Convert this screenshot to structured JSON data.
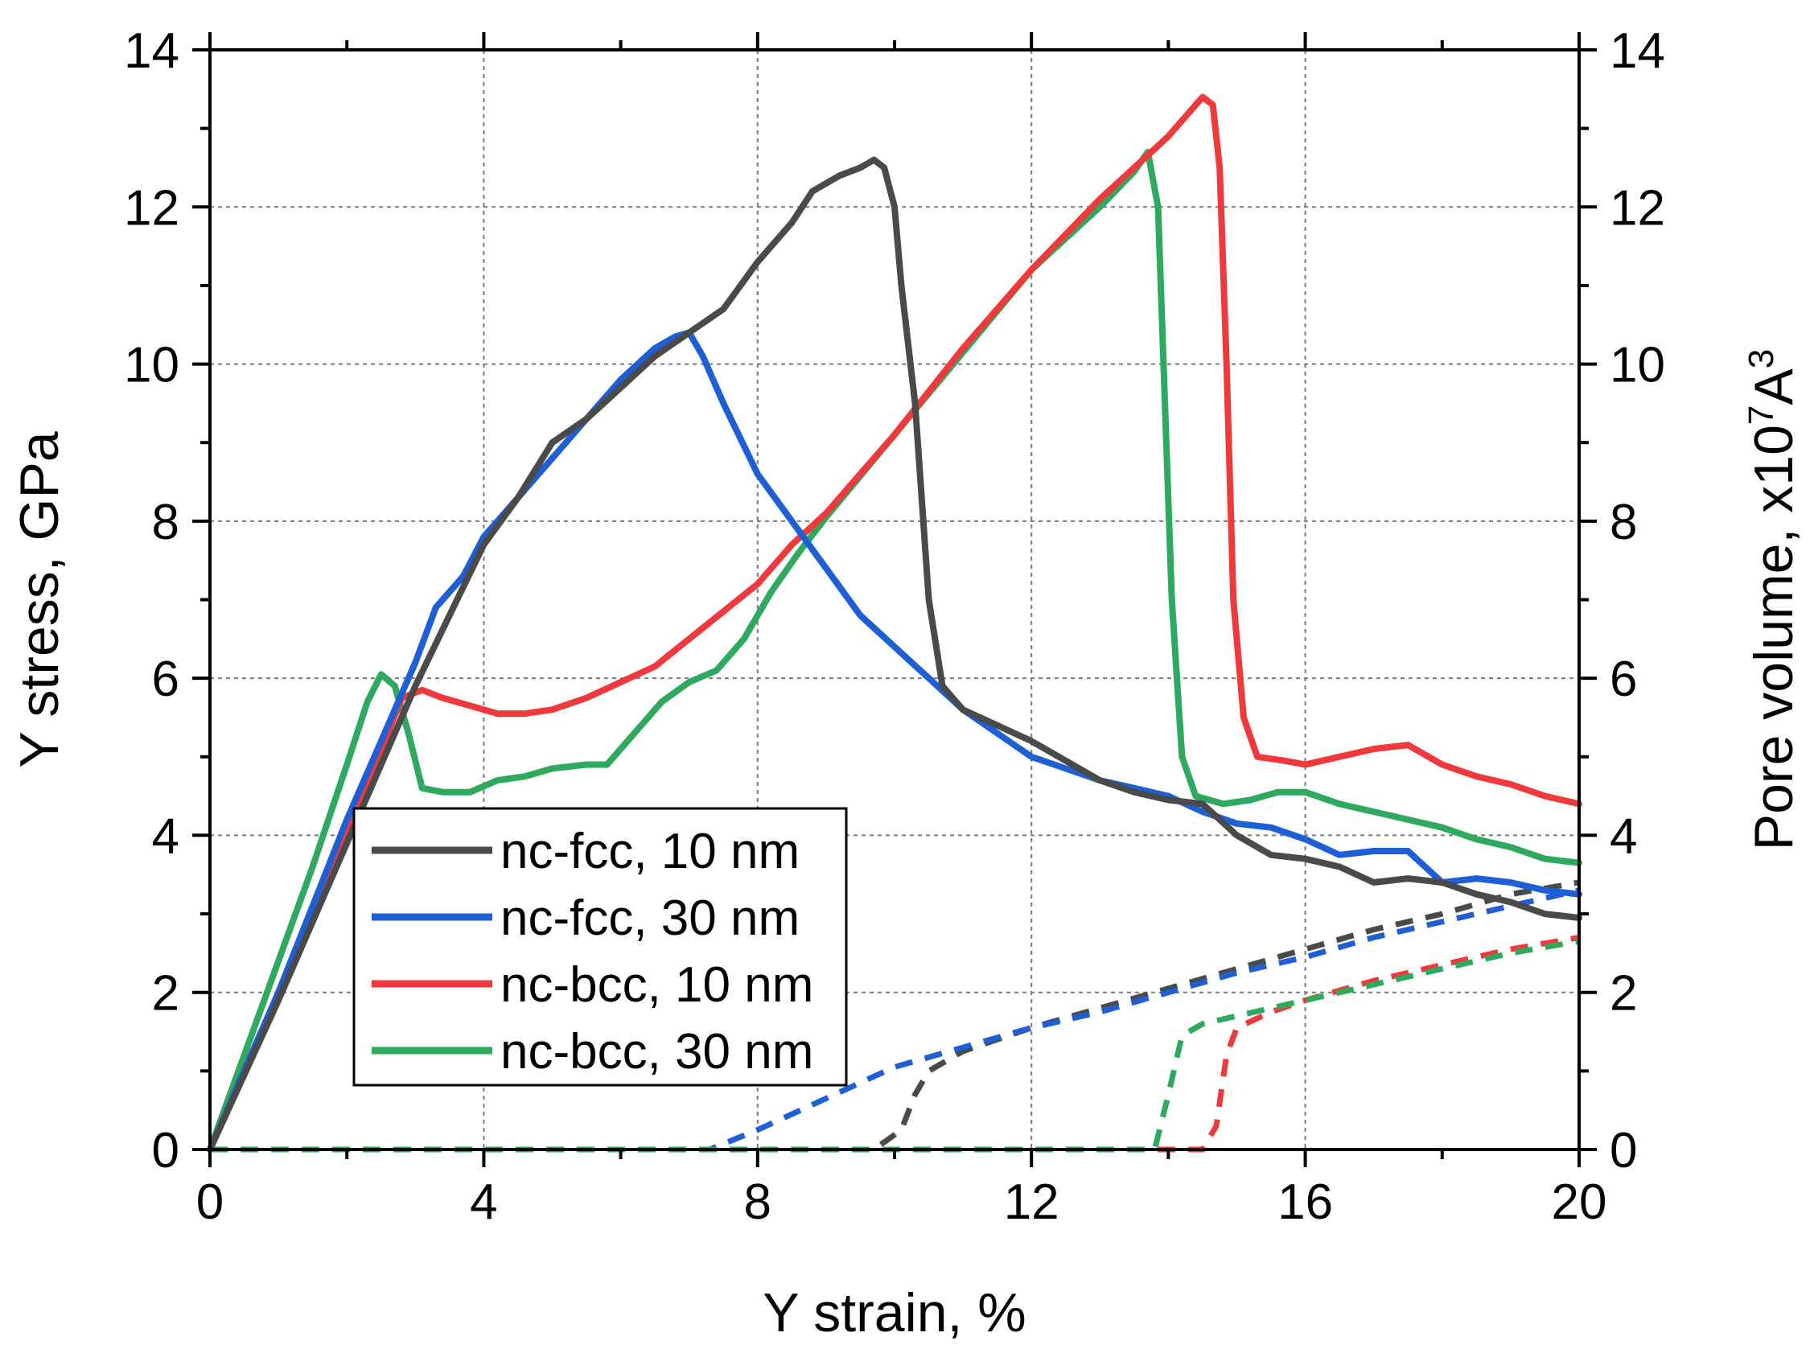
{
  "chart_data": {
    "type": "line",
    "title": "",
    "xlabel": "Y strain, %",
    "ylabel": "Y stress, GPa",
    "y2label_main": "Pore volume, x10",
    "y2label_exp": "7",
    "y2label_unit": "A",
    "y2label_unit_exp": "3",
    "xlim": [
      0,
      20
    ],
    "ylim": [
      0,
      14
    ],
    "y2lim": [
      0,
      14
    ],
    "xticks": [
      0,
      4,
      8,
      12,
      16,
      20
    ],
    "yticks": [
      0,
      2,
      4,
      6,
      8,
      10,
      12,
      14
    ],
    "y2ticks": [
      0,
      2,
      4,
      6,
      8,
      10,
      12,
      14
    ],
    "grid": true,
    "legend_position": "lower-left",
    "series": [
      {
        "name": "nc-fcc, 10 nm",
        "color": "#4a4a4a",
        "points": [
          [
            0,
            0
          ],
          [
            1,
            1.9
          ],
          [
            2,
            3.9
          ],
          [
            3,
            5.9
          ],
          [
            3.5,
            6.8
          ],
          [
            4,
            7.7
          ],
          [
            4.5,
            8.3
          ],
          [
            5,
            9.0
          ],
          [
            5.5,
            9.3
          ],
          [
            6,
            9.7
          ],
          [
            6.5,
            10.1
          ],
          [
            7,
            10.4
          ],
          [
            7.5,
            10.7
          ],
          [
            8,
            11.3
          ],
          [
            8.5,
            11.8
          ],
          [
            8.8,
            12.2
          ],
          [
            9.2,
            12.4
          ],
          [
            9.5,
            12.5
          ],
          [
            9.7,
            12.6
          ],
          [
            9.85,
            12.5
          ],
          [
            10,
            12.0
          ],
          [
            10.1,
            11.0
          ],
          [
            10.3,
            9.5
          ],
          [
            10.5,
            7.0
          ],
          [
            10.7,
            5.9
          ],
          [
            11,
            5.6
          ],
          [
            11.5,
            5.4
          ],
          [
            12,
            5.2
          ],
          [
            12.5,
            4.95
          ],
          [
            13,
            4.7
          ],
          [
            13.5,
            4.55
          ],
          [
            14,
            4.45
          ],
          [
            14.5,
            4.4
          ],
          [
            15,
            4.0
          ],
          [
            15.5,
            3.75
          ],
          [
            16,
            3.7
          ],
          [
            16.5,
            3.6
          ],
          [
            17,
            3.4
          ],
          [
            17.5,
            3.45
          ],
          [
            18,
            3.4
          ],
          [
            18.5,
            3.25
          ],
          [
            19,
            3.15
          ],
          [
            19.5,
            3.0
          ],
          [
            20,
            2.95
          ]
        ]
      },
      {
        "name": "nc-fcc, 30 nm",
        "color": "#1f5fd6",
        "points": [
          [
            0,
            0
          ],
          [
            1,
            2.0
          ],
          [
            2,
            4.2
          ],
          [
            2.5,
            5.2
          ],
          [
            3,
            6.2
          ],
          [
            3.3,
            6.9
          ],
          [
            3.7,
            7.3
          ],
          [
            4,
            7.8
          ],
          [
            4.5,
            8.3
          ],
          [
            5,
            8.8
          ],
          [
            5.5,
            9.3
          ],
          [
            6,
            9.8
          ],
          [
            6.5,
            10.2
          ],
          [
            6.8,
            10.35
          ],
          [
            7,
            10.4
          ],
          [
            7.2,
            10.1
          ],
          [
            7.5,
            9.5
          ],
          [
            8,
            8.6
          ],
          [
            8.5,
            8.0
          ],
          [
            9,
            7.4
          ],
          [
            9.5,
            6.8
          ],
          [
            10,
            6.4
          ],
          [
            10.5,
            6.0
          ],
          [
            11,
            5.6
          ],
          [
            11.5,
            5.3
          ],
          [
            12,
            5.0
          ],
          [
            12.5,
            4.85
          ],
          [
            13,
            4.7
          ],
          [
            13.5,
            4.6
          ],
          [
            14,
            4.5
          ],
          [
            14.5,
            4.3
          ],
          [
            15,
            4.15
          ],
          [
            15.5,
            4.1
          ],
          [
            16,
            3.95
          ],
          [
            16.5,
            3.75
          ],
          [
            17,
            3.8
          ],
          [
            17.5,
            3.8
          ],
          [
            18,
            3.4
          ],
          [
            18.5,
            3.45
          ],
          [
            19,
            3.4
          ],
          [
            19.5,
            3.3
          ],
          [
            20,
            3.25
          ]
        ]
      },
      {
        "name": "nc-bcc, 10 nm",
        "color": "#f0393c",
        "points": [
          [
            0,
            0
          ],
          [
            1,
            2.0
          ],
          [
            2,
            4.0
          ],
          [
            2.6,
            5.3
          ],
          [
            2.8,
            5.75
          ],
          [
            3.1,
            5.85
          ],
          [
            3.4,
            5.75
          ],
          [
            3.8,
            5.65
          ],
          [
            4.2,
            5.55
          ],
          [
            4.6,
            5.55
          ],
          [
            5,
            5.6
          ],
          [
            5.5,
            5.75
          ],
          [
            6,
            5.95
          ],
          [
            6.5,
            6.15
          ],
          [
            7,
            6.5
          ],
          [
            7.5,
            6.85
          ],
          [
            8,
            7.2
          ],
          [
            8.5,
            7.7
          ],
          [
            9,
            8.1
          ],
          [
            9.5,
            8.6
          ],
          [
            10,
            9.1
          ],
          [
            11,
            10.2
          ],
          [
            12,
            11.2
          ],
          [
            13,
            12.1
          ],
          [
            13.5,
            12.5
          ],
          [
            14,
            12.9
          ],
          [
            14.3,
            13.2
          ],
          [
            14.5,
            13.4
          ],
          [
            14.65,
            13.3
          ],
          [
            14.75,
            12.5
          ],
          [
            14.85,
            10.0
          ],
          [
            14.95,
            7.0
          ],
          [
            15.1,
            5.5
          ],
          [
            15.3,
            5.0
          ],
          [
            15.7,
            4.95
          ],
          [
            16,
            4.9
          ],
          [
            16.5,
            5.0
          ],
          [
            17,
            5.1
          ],
          [
            17.5,
            5.15
          ],
          [
            18,
            4.9
          ],
          [
            18.5,
            4.75
          ],
          [
            19,
            4.65
          ],
          [
            19.5,
            4.5
          ],
          [
            20,
            4.4
          ]
        ]
      },
      {
        "name": "nc-bcc, 30 nm",
        "color": "#2eaa5e",
        "points": [
          [
            0,
            0
          ],
          [
            0.5,
            1.2
          ],
          [
            1,
            2.4
          ],
          [
            1.5,
            3.6
          ],
          [
            2,
            4.9
          ],
          [
            2.3,
            5.7
          ],
          [
            2.5,
            6.05
          ],
          [
            2.7,
            5.9
          ],
          [
            2.9,
            5.3
          ],
          [
            3.1,
            4.6
          ],
          [
            3.4,
            4.55
          ],
          [
            3.8,
            4.55
          ],
          [
            4.2,
            4.7
          ],
          [
            4.6,
            4.75
          ],
          [
            5,
            4.85
          ],
          [
            5.5,
            4.9
          ],
          [
            5.8,
            4.9
          ],
          [
            6.2,
            5.3
          ],
          [
            6.6,
            5.7
          ],
          [
            7,
            5.95
          ],
          [
            7.4,
            6.1
          ],
          [
            7.8,
            6.5
          ],
          [
            8.2,
            7.1
          ],
          [
            8.6,
            7.6
          ],
          [
            9,
            8.05
          ],
          [
            10,
            9.1
          ],
          [
            11,
            10.15
          ],
          [
            12,
            11.2
          ],
          [
            13,
            12.0
          ],
          [
            13.5,
            12.45
          ],
          [
            13.7,
            12.7
          ],
          [
            13.85,
            12.0
          ],
          [
            13.95,
            9.5
          ],
          [
            14.05,
            7.0
          ],
          [
            14.2,
            5.0
          ],
          [
            14.4,
            4.5
          ],
          [
            14.8,
            4.4
          ],
          [
            15.2,
            4.45
          ],
          [
            15.6,
            4.55
          ],
          [
            16,
            4.55
          ],
          [
            16.5,
            4.4
          ],
          [
            17,
            4.3
          ],
          [
            17.5,
            4.2
          ],
          [
            18,
            4.1
          ],
          [
            18.5,
            3.95
          ],
          [
            19,
            3.85
          ],
          [
            19.5,
            3.7
          ],
          [
            20,
            3.65
          ]
        ]
      }
    ],
    "pore_series": [
      {
        "name": "nc-fcc, 10 nm pore volume",
        "color": "#4a4a4a",
        "points": [
          [
            0,
            0
          ],
          [
            9.7,
            0
          ],
          [
            10.1,
            0.25
          ],
          [
            10.3,
            0.7
          ],
          [
            10.5,
            1.0
          ],
          [
            11,
            1.25
          ],
          [
            12,
            1.55
          ],
          [
            13,
            1.8
          ],
          [
            14,
            2.05
          ],
          [
            15,
            2.3
          ],
          [
            16,
            2.55
          ],
          [
            17,
            2.8
          ],
          [
            18,
            3.0
          ],
          [
            19,
            3.25
          ],
          [
            20,
            3.4
          ]
        ]
      },
      {
        "name": "nc-fcc, 30 nm pore volume",
        "color": "#1f5fd6",
        "points": [
          [
            0,
            0
          ],
          [
            7.3,
            0
          ],
          [
            8,
            0.25
          ],
          [
            9,
            0.65
          ],
          [
            10,
            1.05
          ],
          [
            11,
            1.3
          ],
          [
            12,
            1.55
          ],
          [
            13,
            1.75
          ],
          [
            14,
            2.0
          ],
          [
            15,
            2.25
          ],
          [
            16,
            2.45
          ],
          [
            17,
            2.7
          ],
          [
            18,
            2.9
          ],
          [
            19,
            3.1
          ],
          [
            20,
            3.3
          ]
        ]
      },
      {
        "name": "nc-bcc, 10 nm pore volume",
        "color": "#f0393c",
        "points": [
          [
            0,
            0
          ],
          [
            14.5,
            0
          ],
          [
            14.7,
            0.3
          ],
          [
            14.85,
            1.2
          ],
          [
            15,
            1.55
          ],
          [
            15.5,
            1.75
          ],
          [
            16,
            1.9
          ],
          [
            17,
            2.15
          ],
          [
            18,
            2.35
          ],
          [
            19,
            2.55
          ],
          [
            20,
            2.7
          ]
        ]
      },
      {
        "name": "nc-bcc, 30 nm pore volume",
        "color": "#2eaa5e",
        "points": [
          [
            0,
            0
          ],
          [
            13.8,
            0
          ],
          [
            14,
            0.7
          ],
          [
            14.2,
            1.45
          ],
          [
            14.5,
            1.6
          ],
          [
            15,
            1.7
          ],
          [
            16,
            1.9
          ],
          [
            17,
            2.1
          ],
          [
            18,
            2.3
          ],
          [
            19,
            2.5
          ],
          [
            20,
            2.65
          ]
        ]
      }
    ]
  }
}
